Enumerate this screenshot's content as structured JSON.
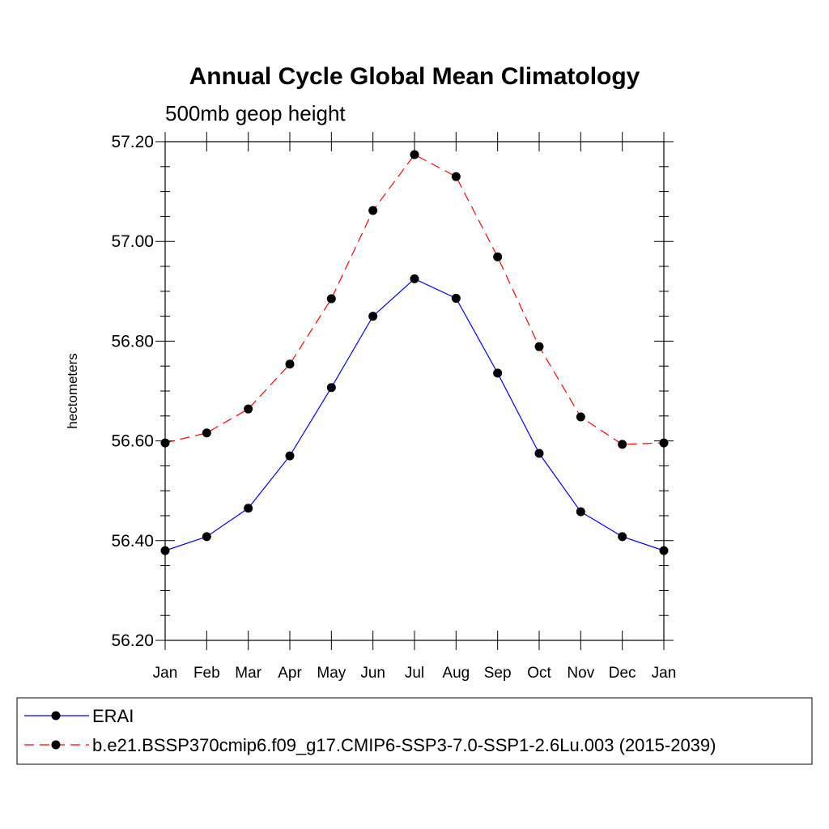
{
  "chart_data": {
    "type": "line",
    "title": "Annual Cycle Global Mean Climatology",
    "subtitle": "500mb geop height",
    "ylabel": "hectometers",
    "xlabel": "",
    "categories": [
      "Jan",
      "Feb",
      "Mar",
      "Apr",
      "May",
      "Jun",
      "Jul",
      "Aug",
      "Sep",
      "Oct",
      "Nov",
      "Dec",
      "Jan"
    ],
    "ylim": [
      56.2,
      57.2
    ],
    "yticks": [
      "56.20",
      "56.40",
      "56.60",
      "56.80",
      "57.00",
      "57.20"
    ],
    "series": [
      {
        "name": "ERAI",
        "color": "#0000ff",
        "dash": "solid",
        "values": [
          56.38,
          56.408,
          56.465,
          56.57,
          56.707,
          56.85,
          56.925,
          56.886,
          56.736,
          56.575,
          56.458,
          56.408,
          56.38
        ]
      },
      {
        "name": "b.e21.BSSP370cmip6.f09_g17.CMIP6-SSP3-7.0-SSP1-2.6Lu.003 (2015-2039)",
        "color": "#ff0000",
        "dash": "dashed",
        "values": [
          56.596,
          56.616,
          56.664,
          56.754,
          56.885,
          57.062,
          57.174,
          57.13,
          56.969,
          56.789,
          56.648,
          56.593,
          56.596
        ]
      }
    ],
    "legend_position": "bottom",
    "grid": false
  }
}
